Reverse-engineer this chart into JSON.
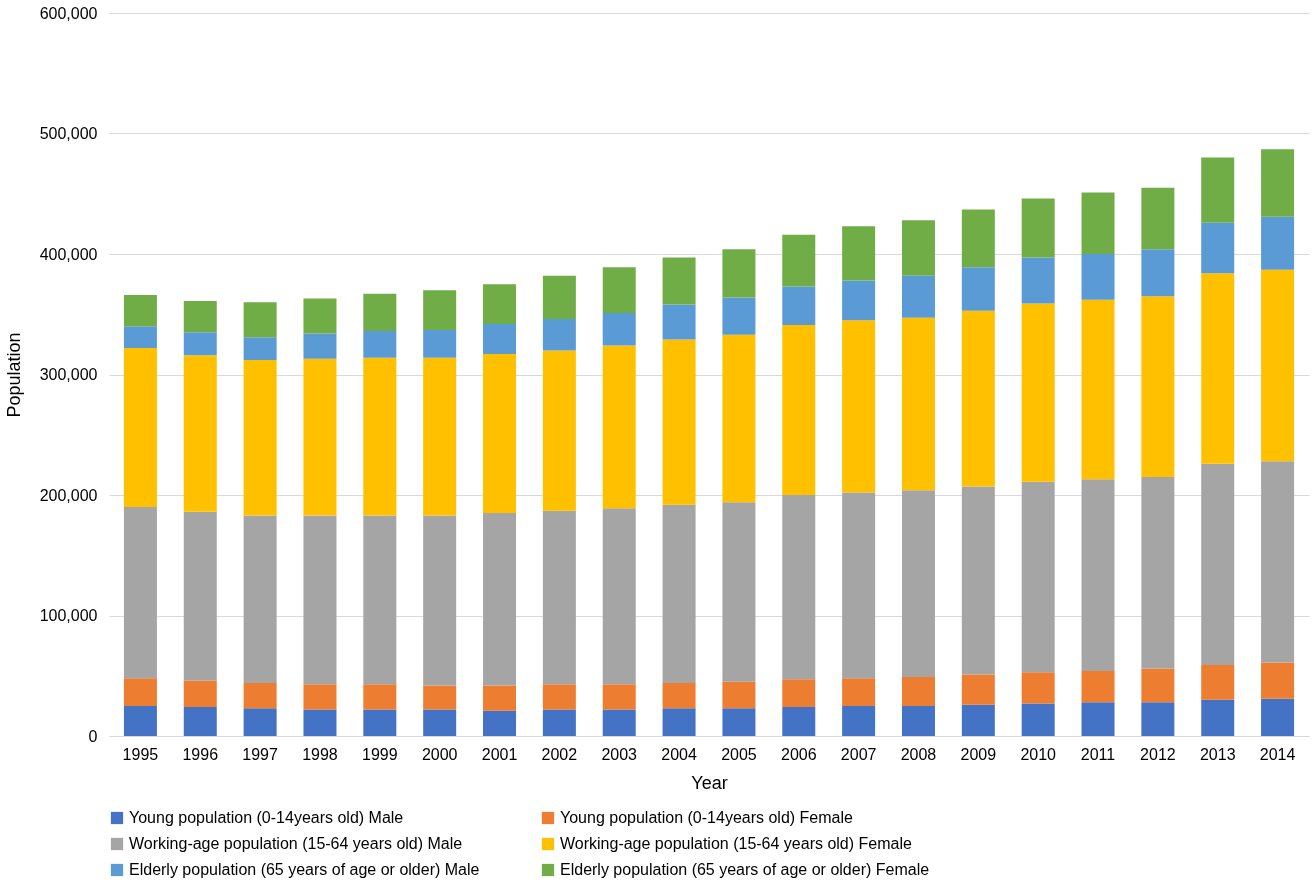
{
  "chart_data": {
    "type": "bar",
    "stacked": true,
    "xlabel": "Year",
    "ylabel": "Population",
    "categories": [
      "1995",
      "1996",
      "1997",
      "1998",
      "1999",
      "2000",
      "2001",
      "2002",
      "2003",
      "2004",
      "2005",
      "2006",
      "2007",
      "2008",
      "2009",
      "2010",
      "2011",
      "2012",
      "2013",
      "2014"
    ],
    "series": [
      {
        "name": "Young population (0-14years old) Male",
        "color": "#4472c4",
        "values": [
          25000,
          24000,
          23000,
          22000,
          22000,
          22000,
          21000,
          22000,
          22000,
          23000,
          23000,
          24000,
          25000,
          25000,
          26000,
          27000,
          28000,
          28000,
          30000,
          31000
        ]
      },
      {
        "name": "Young population (0-14years old) Female",
        "color": "#ed7d31",
        "values": [
          23000,
          22000,
          21000,
          21000,
          21000,
          20000,
          21000,
          21000,
          21000,
          21000,
          22000,
          23000,
          23000,
          24000,
          25000,
          26000,
          26000,
          28000,
          29000,
          30000
        ]
      },
      {
        "name": "Working-age population (15-64 years old) Male",
        "color": "#a5a5a5",
        "values": [
          142000,
          140000,
          139000,
          140000,
          140000,
          141000,
          143000,
          144000,
          146000,
          148000,
          149000,
          153000,
          154000,
          155000,
          156000,
          158000,
          159000,
          159000,
          167000,
          167000
        ]
      },
      {
        "name": "Working-age population (15-64 years old) Female",
        "color": "#ffc000",
        "values": [
          132000,
          130000,
          129000,
          130000,
          131000,
          131000,
          132000,
          133000,
          135000,
          137000,
          139000,
          141000,
          143000,
          143000,
          146000,
          148000,
          149000,
          150000,
          158000,
          159000
        ]
      },
      {
        "name": "Elderly population (65 years of age or older) Male",
        "color": "#5b9bd5",
        "values": [
          18000,
          19000,
          19000,
          21000,
          22000,
          23000,
          25000,
          26000,
          27000,
          29000,
          31000,
          32000,
          33000,
          35000,
          36000,
          38000,
          38000,
          39000,
          42000,
          44000
        ]
      },
      {
        "name": "Elderly population (65 years of age or older) Female",
        "color": "#70ad47",
        "values": [
          26000,
          26000,
          29000,
          29000,
          31000,
          33000,
          33000,
          36000,
          38000,
          39000,
          40000,
          43000,
          45000,
          46000,
          48000,
          49000,
          51000,
          51000,
          54000,
          56000
        ]
      }
    ],
    "ylim": [
      0,
      600000
    ],
    "yticks": [
      0,
      {
        "value": 100000,
        "label": "100,000"
      },
      {
        "value": 200000,
        "label": "200,000"
      },
      {
        "value": 300000,
        "label": "300,000"
      },
      {
        "value": 400000,
        "label": "400,000"
      },
      {
        "value": 500000,
        "label": "500,000"
      },
      {
        "value": 600000,
        "label": "600,000"
      }
    ],
    "grid": "y",
    "legend": "bottom"
  }
}
